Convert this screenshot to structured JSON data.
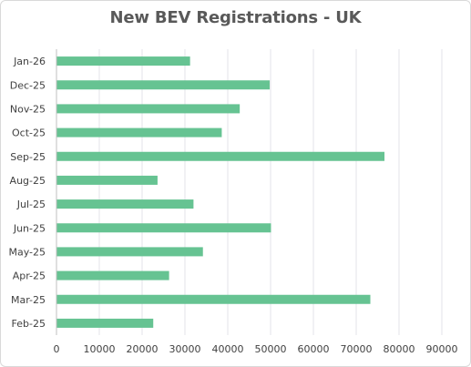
{
  "chart_data": {
    "type": "bar",
    "orientation": "horizontal",
    "title": "New BEV Registrations - UK",
    "xlabel": "",
    "ylabel": "",
    "categories": [
      "Jan-26",
      "Dec-25",
      "Nov-25",
      "Oct-25",
      "Sep-25",
      "Aug-25",
      "Jul-25",
      "Jun-25",
      "May-25",
      "Apr-25",
      "Mar-25",
      "Feb-25"
    ],
    "values": [
      31200,
      49800,
      42800,
      38600,
      76600,
      23600,
      32000,
      50100,
      34200,
      26300,
      73300,
      22600
    ],
    "xlim": [
      0,
      90000
    ],
    "xticks": [
      "0",
      "10000",
      "20000",
      "30000",
      "40000",
      "50000",
      "60000",
      "70000",
      "80000",
      "90000"
    ],
    "grid": "vertical",
    "legend": "none",
    "bar_color": "#66c392",
    "grid_color": "#e3e3e8",
    "axis_color": "#bfbfbf"
  }
}
